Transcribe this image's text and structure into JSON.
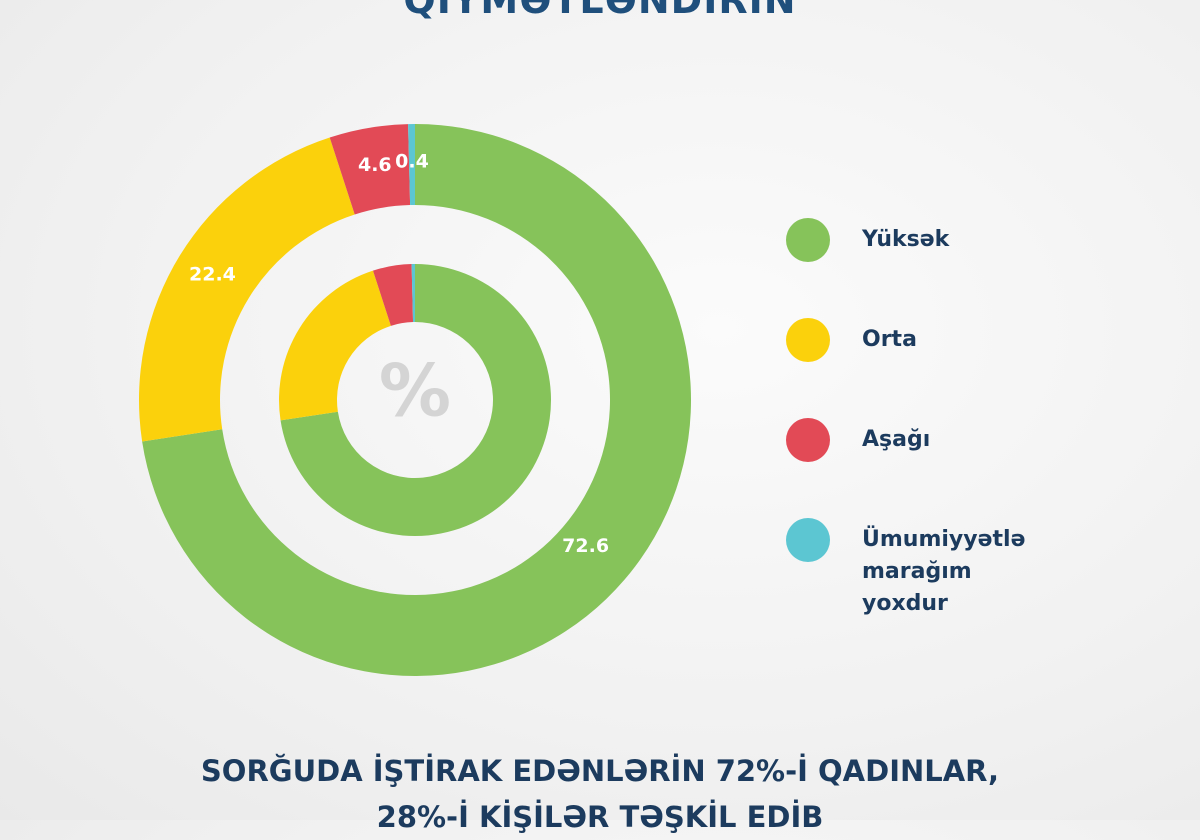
{
  "chart_data": {
    "type": "donut",
    "title": "QİYMƏTLƏNDİRİN",
    "categories": [
      "Yüksək",
      "Orta",
      "Aşağı",
      "Ümumiyyətlə marağım yoxdur"
    ],
    "values": [
      72.6,
      22.4,
      4.6,
      0.4
    ],
    "colors": [
      "#86c35a",
      "#fbd10c",
      "#e24a56",
      "#5cc6d2"
    ],
    "center_label": "%",
    "footnote": "SORĞUDA İŞTİRAK EDƏNLƏRİN 72%-İ QADINLAR, 28%-İ KİŞİLƏR TƏŞKİL EDİB"
  }
}
